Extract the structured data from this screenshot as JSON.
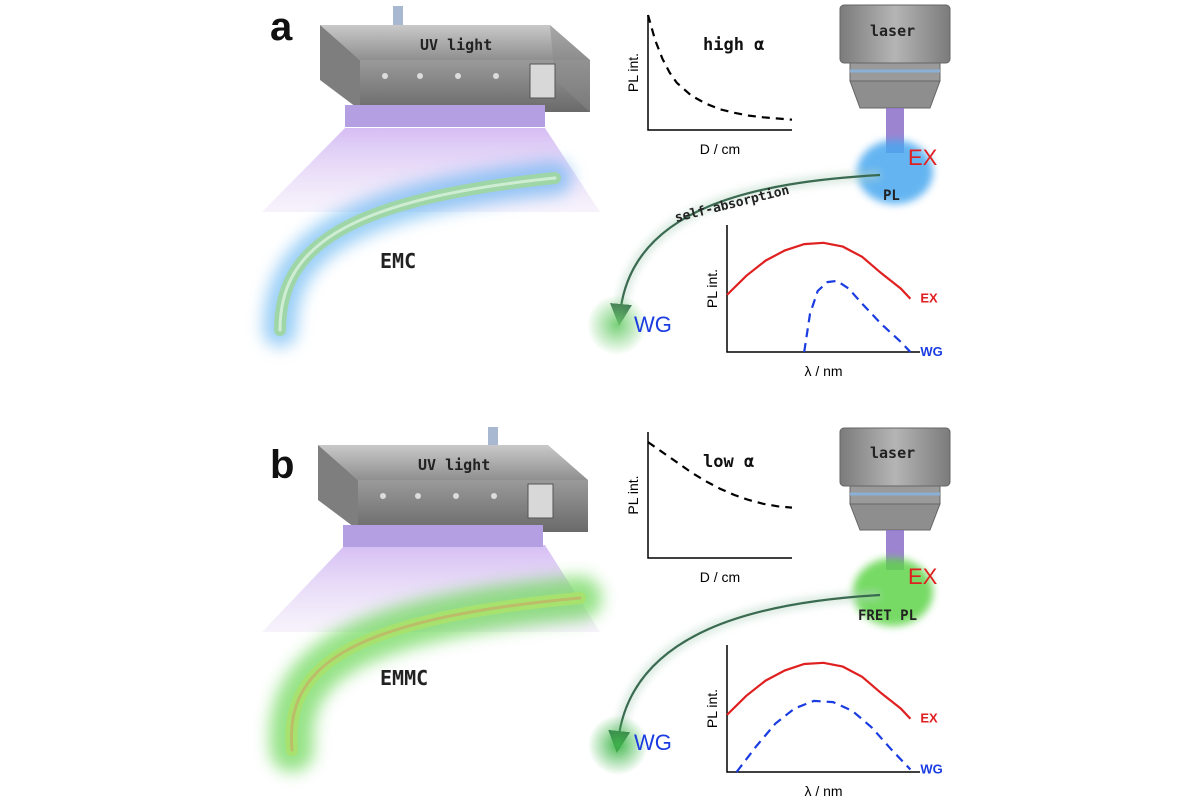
{
  "panels": [
    {
      "letter": "a",
      "uv_label": "UV light",
      "laser_label": "laser",
      "crystal_label": "EMC",
      "path_label": "self-absorption",
      "ex_label": "EX",
      "pl_label": "PL",
      "wg_label": "WG",
      "glow_color": "#4aa8f0",
      "crystal_fill": "#9fd6a8",
      "decay_chart": {
        "type": "line",
        "xlabel": "D / cm",
        "ylabel": "PL int.",
        "annotation": "high α",
        "points": [
          [
            0,
            1.0
          ],
          [
            0.05,
            0.78
          ],
          [
            0.1,
            0.62
          ],
          [
            0.15,
            0.5
          ],
          [
            0.2,
            0.41
          ],
          [
            0.3,
            0.3
          ],
          [
            0.4,
            0.23
          ],
          [
            0.5,
            0.18
          ],
          [
            0.6,
            0.15
          ],
          [
            0.7,
            0.125
          ],
          [
            0.8,
            0.11
          ],
          [
            0.9,
            0.1
          ],
          [
            1.0,
            0.09
          ]
        ]
      },
      "spectrum_chart": {
        "type": "line",
        "xlabel": "λ / nm",
        "ylabel": "PL int.",
        "series": [
          {
            "name": "EX",
            "color": "#e02020",
            "dash": false,
            "points": [
              [
                0,
                0.45
              ],
              [
                0.1,
                0.6
              ],
              [
                0.2,
                0.72
              ],
              [
                0.3,
                0.8
              ],
              [
                0.4,
                0.85
              ],
              [
                0.5,
                0.86
              ],
              [
                0.6,
                0.83
              ],
              [
                0.7,
                0.75
              ],
              [
                0.8,
                0.62
              ],
              [
                0.9,
                0.5
              ],
              [
                0.95,
                0.42
              ]
            ]
          },
          {
            "name": "WG",
            "color": "#1a3ce0",
            "dash": true,
            "points": [
              [
                0.4,
                0.0
              ],
              [
                0.43,
                0.3
              ],
              [
                0.47,
                0.48
              ],
              [
                0.52,
                0.55
              ],
              [
                0.57,
                0.56
              ],
              [
                0.63,
                0.5
              ],
              [
                0.7,
                0.38
              ],
              [
                0.8,
                0.22
              ],
              [
                0.9,
                0.08
              ],
              [
                0.95,
                0.0
              ]
            ]
          }
        ]
      }
    },
    {
      "letter": "b",
      "uv_label": "UV light",
      "laser_label": "laser",
      "crystal_label": "EMMC",
      "path_label": "",
      "ex_label": "EX",
      "pl_label": "FRET PL",
      "wg_label": "WG",
      "glow_color": "#5fd44a",
      "crystal_fill": "#a8e26e",
      "decay_chart": {
        "type": "line",
        "xlabel": "D / cm",
        "ylabel": "PL int.",
        "annotation": "low α",
        "points": [
          [
            0,
            0.92
          ],
          [
            0.1,
            0.84
          ],
          [
            0.2,
            0.76
          ],
          [
            0.3,
            0.68
          ],
          [
            0.4,
            0.61
          ],
          [
            0.5,
            0.55
          ],
          [
            0.6,
            0.5
          ],
          [
            0.7,
            0.46
          ],
          [
            0.8,
            0.43
          ],
          [
            0.9,
            0.41
          ],
          [
            1.0,
            0.4
          ]
        ]
      },
      "spectrum_chart": {
        "type": "line",
        "xlabel": "λ / nm",
        "ylabel": "PL int.",
        "series": [
          {
            "name": "EX",
            "color": "#e02020",
            "dash": false,
            "points": [
              [
                0,
                0.45
              ],
              [
                0.1,
                0.6
              ],
              [
                0.2,
                0.72
              ],
              [
                0.3,
                0.8
              ],
              [
                0.4,
                0.85
              ],
              [
                0.5,
                0.86
              ],
              [
                0.6,
                0.83
              ],
              [
                0.7,
                0.75
              ],
              [
                0.8,
                0.62
              ],
              [
                0.9,
                0.5
              ],
              [
                0.95,
                0.42
              ]
            ]
          },
          {
            "name": "WG",
            "color": "#1a3ce0",
            "dash": true,
            "points": [
              [
                0.05,
                0.0
              ],
              [
                0.15,
                0.2
              ],
              [
                0.25,
                0.38
              ],
              [
                0.35,
                0.5
              ],
              [
                0.45,
                0.56
              ],
              [
                0.55,
                0.55
              ],
              [
                0.65,
                0.48
              ],
              [
                0.75,
                0.35
              ],
              [
                0.85,
                0.18
              ],
              [
                0.95,
                0.02
              ]
            ]
          }
        ]
      }
    }
  ]
}
